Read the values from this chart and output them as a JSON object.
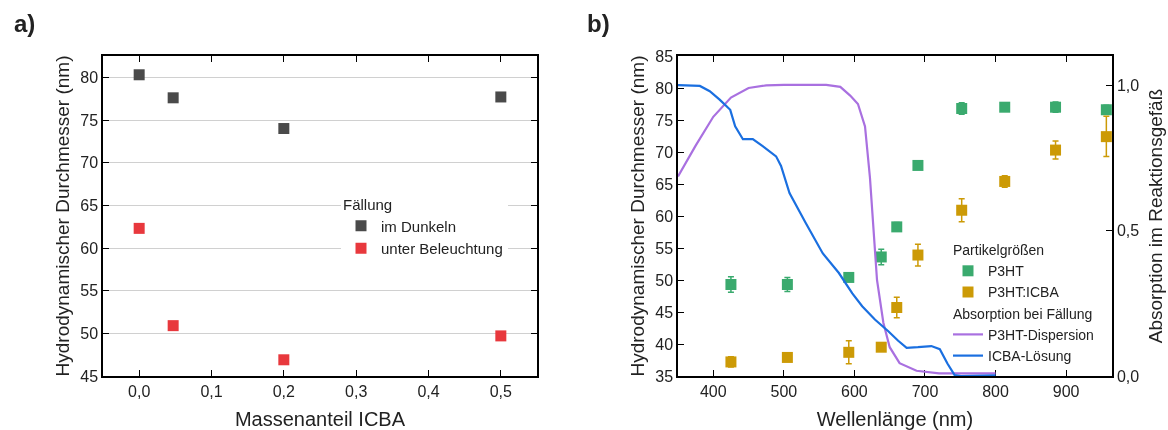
{
  "chart_data": [
    {
      "type": "scatter",
      "xlabel": "Massenanteil ICBA",
      "ylabel": "Hydrodynamischer Durchmesser (nm)",
      "annotations": [
        "a)"
      ],
      "x": [
        0,
        0.047,
        0.2,
        0.5
      ],
      "xlim": [
        -0.05,
        0.55
      ],
      "xticks": [
        {
          "value": 0,
          "label": "0,0"
        },
        {
          "value": 0.1,
          "label": "0,1"
        },
        {
          "value": 0.2,
          "label": "0,2"
        },
        {
          "value": 0.3,
          "label": "0,3"
        },
        {
          "value": 0.4,
          "label": "0,4"
        },
        {
          "value": 0.5,
          "label": "0,5"
        }
      ],
      "ylim": [
        45,
        82.5
      ],
      "yticks": [
        45,
        50,
        55,
        60,
        65,
        70,
        75,
        80
      ],
      "grid": "y",
      "legend": "right",
      "legend_title": "Fällung",
      "marker": "square",
      "series": [
        {
          "name": "im Dunkeln",
          "color": "#4a4a4a",
          "values": [
            80.3,
            77.6,
            74.0,
            77.7
          ]
        },
        {
          "name": "unter Beleuchtung",
          "color": "#e8383d",
          "values": [
            62.3,
            50.9,
            46.9,
            49.7
          ]
        }
      ]
    },
    {
      "type": "scatter",
      "xlabel": "Wellenlänge (nm)",
      "ylabel": "Hydrodynamischer Durchmesser (nm)",
      "y2label": "Absorption im Reaktionsgefäß",
      "annotations": [
        "b)"
      ],
      "xlim": [
        350,
        965
      ],
      "xticks": [
        400,
        500,
        600,
        700,
        800,
        900
      ],
      "ylim": [
        35,
        85
      ],
      "yticks": [
        35,
        40,
        45,
        50,
        55,
        60,
        65,
        70,
        75,
        80,
        85
      ],
      "y2lim": [
        0,
        1.1
      ],
      "y2ticks": [
        {
          "value": 0,
          "label": "0,0"
        },
        {
          "value": 0.5,
          "label": "0,5"
        },
        {
          "value": 1,
          "label": "1,0"
        }
      ],
      "grid": false,
      "legend": "bottom right",
      "legend_title": [
        "Partikelgrößen",
        "Absorption bei Fällung"
      ],
      "marker": "square",
      "series": [
        {
          "name": "P3HT",
          "color": "#3aaa6e",
          "x": [
            425,
            505,
            592,
            638,
            660,
            690,
            752,
            813,
            885,
            957
          ],
          "values": [
            49.3,
            49.3,
            50.4,
            53.6,
            58.3,
            67.9,
            76.8,
            77.0,
            77.0,
            76.6
          ],
          "errors": [
            1.2,
            1.1,
            null,
            1.2,
            0.7,
            null,
            0.9,
            null,
            0.8,
            0.7
          ]
        },
        {
          "name": "P3HT:ICBA",
          "color": "#cc9a06",
          "x": [
            425,
            505,
            592,
            638,
            660,
            690,
            752,
            813,
            885,
            957
          ],
          "values": [
            37.2,
            37.9,
            38.7,
            39.5,
            45.7,
            53.9,
            60.9,
            65.4,
            70.3,
            72.4
          ],
          "errors": [
            0.8,
            null,
            1.8,
            null,
            1.6,
            1.7,
            1.8,
            0.9,
            1.4,
            [
              69.3,
              75.6
            ]
          ]
        },
        {
          "name": "P3HT-Dispersion",
          "type": "line",
          "marker": "none",
          "axis": "y2",
          "color": "#a970e0",
          "x": [
            350,
            375,
            400,
            425,
            450,
            475,
            500,
            560,
            580,
            594,
            605,
            615,
            622,
            632,
            641,
            650,
            664,
            688,
            720,
            800
          ],
          "values": [
            0.686,
            0.792,
            0.891,
            0.957,
            0.99,
            0.999,
            1.001,
            1.001,
            0.994,
            0.964,
            0.935,
            0.858,
            0.682,
            0.33,
            0.183,
            0.099,
            0.044,
            0.018,
            0.009,
            0.009
          ]
        },
        {
          "name": "ICBA-Lösung",
          "type": "line",
          "marker": "none",
          "axis": "y2",
          "color": "#1a6fe0",
          "x": [
            350,
            381,
            395,
            409,
            424,
            431,
            442,
            456,
            470,
            489,
            496,
            508,
            531,
            555,
            578,
            597,
            611,
            629,
            648,
            662,
            674,
            690,
            709,
            721,
            732,
            742,
            751,
            800
          ],
          "values": [
            1.0,
            0.997,
            0.979,
            0.95,
            0.915,
            0.858,
            0.814,
            0.814,
            0.79,
            0.755,
            0.722,
            0.629,
            0.526,
            0.422,
            0.354,
            0.284,
            0.24,
            0.194,
            0.154,
            0.121,
            0.097,
            0.099,
            0.103,
            0.092,
            0.042,
            0.003,
            0.0,
            0.002
          ]
        }
      ]
    }
  ]
}
